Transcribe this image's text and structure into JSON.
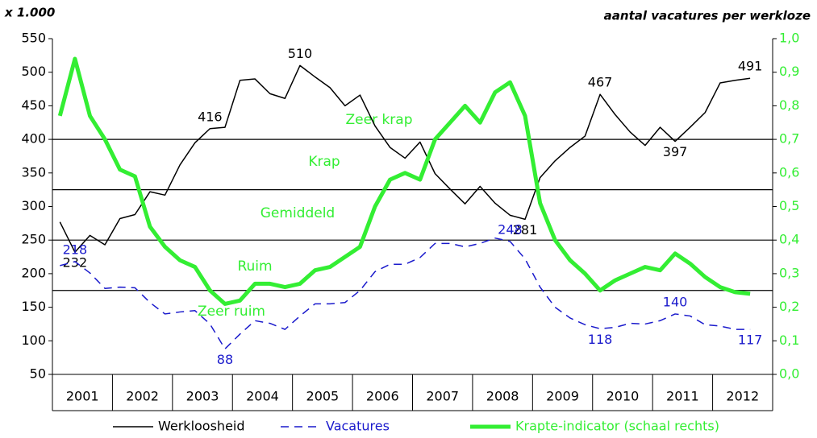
{
  "chart_data": {
    "type": "line",
    "y_title": "x 1.000",
    "y2_title": "aantal vacatures per werkloze",
    "xlim": [
      2001,
      2013
    ],
    "xticks": [
      {
        "value": 2001.5,
        "label": "2001"
      },
      {
        "value": 2002.5,
        "label": "2002"
      },
      {
        "value": 2003.5,
        "label": "2003"
      },
      {
        "value": 2004.5,
        "label": "2004"
      },
      {
        "value": 2005.5,
        "label": "2005"
      },
      {
        "value": 2006.5,
        "label": "2006"
      },
      {
        "value": 2007.5,
        "label": "2007"
      },
      {
        "value": 2008.5,
        "label": "2008"
      },
      {
        "value": 2009.5,
        "label": "2009"
      },
      {
        "value": 2010.5,
        "label": "2010"
      },
      {
        "value": 2011.5,
        "label": "2011"
      },
      {
        "value": 2012.5,
        "label": "2012"
      }
    ],
    "ylim": [
      50,
      550
    ],
    "yticks": [
      50,
      100,
      150,
      200,
      250,
      300,
      350,
      400,
      450,
      500,
      550
    ],
    "y2lim": [
      0,
      1
    ],
    "y2ticks": [
      {
        "value": 0,
        "label": "0,0"
      },
      {
        "value": 0.1,
        "label": "0,1"
      },
      {
        "value": 0.2,
        "label": "0,2"
      },
      {
        "value": 0.3,
        "label": "0,3"
      },
      {
        "value": 0.4,
        "label": "0,4"
      },
      {
        "value": 0.5,
        "label": "0,5"
      },
      {
        "value": 0.6,
        "label": "0,6"
      },
      {
        "value": 0.7,
        "label": "0,7"
      },
      {
        "value": 0.8,
        "label": "0,8"
      },
      {
        "value": 0.9,
        "label": "0,9"
      },
      {
        "value": 1,
        "label": "1,0"
      }
    ],
    "reference_lines": [
      400,
      325,
      250,
      175
    ],
    "annotations": [
      "Zeer krap",
      "Krap",
      "Gemiddeld",
      "Ruim",
      "Zeer ruim"
    ],
    "x": [
      2001.125,
      2001.375,
      2001.625,
      2001.875,
      2002.125,
      2002.375,
      2002.625,
      2002.875,
      2003.125,
      2003.375,
      2003.625,
      2003.875,
      2004.125,
      2004.375,
      2004.625,
      2004.875,
      2005.125,
      2005.375,
      2005.625,
      2005.875,
      2006.125,
      2006.375,
      2006.625,
      2006.875,
      2007.125,
      2007.375,
      2007.625,
      2007.875,
      2008.125,
      2008.375,
      2008.625,
      2008.875,
      2009.125,
      2009.375,
      2009.625,
      2009.875,
      2010.125,
      2010.375,
      2010.625,
      2010.875,
      2011.125,
      2011.375,
      2011.625,
      2011.875,
      2012.125,
      2012.375,
      2012.625
    ],
    "series": [
      {
        "name": "Werkloosheid",
        "color": "#000000",
        "dash": false,
        "width": 1.5,
        "labeled_indices": [
          1,
          10,
          16,
          31,
          36,
          41,
          46
        ],
        "values": [
          277,
          232,
          257,
          243,
          282,
          288,
          322,
          317,
          362,
          395,
          416,
          418,
          488,
          490,
          468,
          461,
          510,
          493,
          477,
          450,
          466,
          420,
          388,
          372,
          396,
          349,
          326,
          304,
          330,
          305,
          287,
          281,
          343,
          368,
          388,
          405,
          467,
          437,
          411,
          391,
          418,
          397,
          418,
          440,
          484,
          488,
          491
        ]
      },
      {
        "name": "Vacatures",
        "color": "#1a1acc",
        "dash": true,
        "width": 1.5,
        "labeled_indices": [
          1,
          11,
          30,
          36,
          41,
          46
        ],
        "values": [
          212,
          218,
          201,
          178,
          180,
          179,
          157,
          140,
          143,
          145,
          125,
          88,
          110,
          130,
          126,
          117,
          137,
          155,
          155,
          157,
          175,
          203,
          214,
          214,
          224,
          245,
          245,
          240,
          245,
          253,
          248,
          222,
          180,
          150,
          134,
          124,
          118,
          120,
          126,
          125,
          130,
          140,
          137,
          124,
          122,
          117,
          117
        ]
      },
      {
        "name": "Krapte-indicator (schaal rechts)",
        "color": "#33ee33",
        "dash": false,
        "width": 5,
        "axis": "y2",
        "values": [
          0.77,
          0.94,
          0.77,
          0.7,
          0.61,
          0.59,
          0.44,
          0.38,
          0.34,
          0.32,
          0.25,
          0.21,
          0.22,
          0.27,
          0.27,
          0.26,
          0.27,
          0.31,
          0.32,
          0.35,
          0.38,
          0.5,
          0.58,
          0.6,
          0.58,
          0.7,
          0.75,
          0.8,
          0.75,
          0.84,
          0.87,
          0.77,
          0.51,
          0.4,
          0.34,
          0.3,
          0.25,
          0.28,
          0.3,
          0.32,
          0.31,
          0.36,
          0.33,
          0.29,
          0.26,
          0.245,
          0.24
        ]
      }
    ]
  }
}
